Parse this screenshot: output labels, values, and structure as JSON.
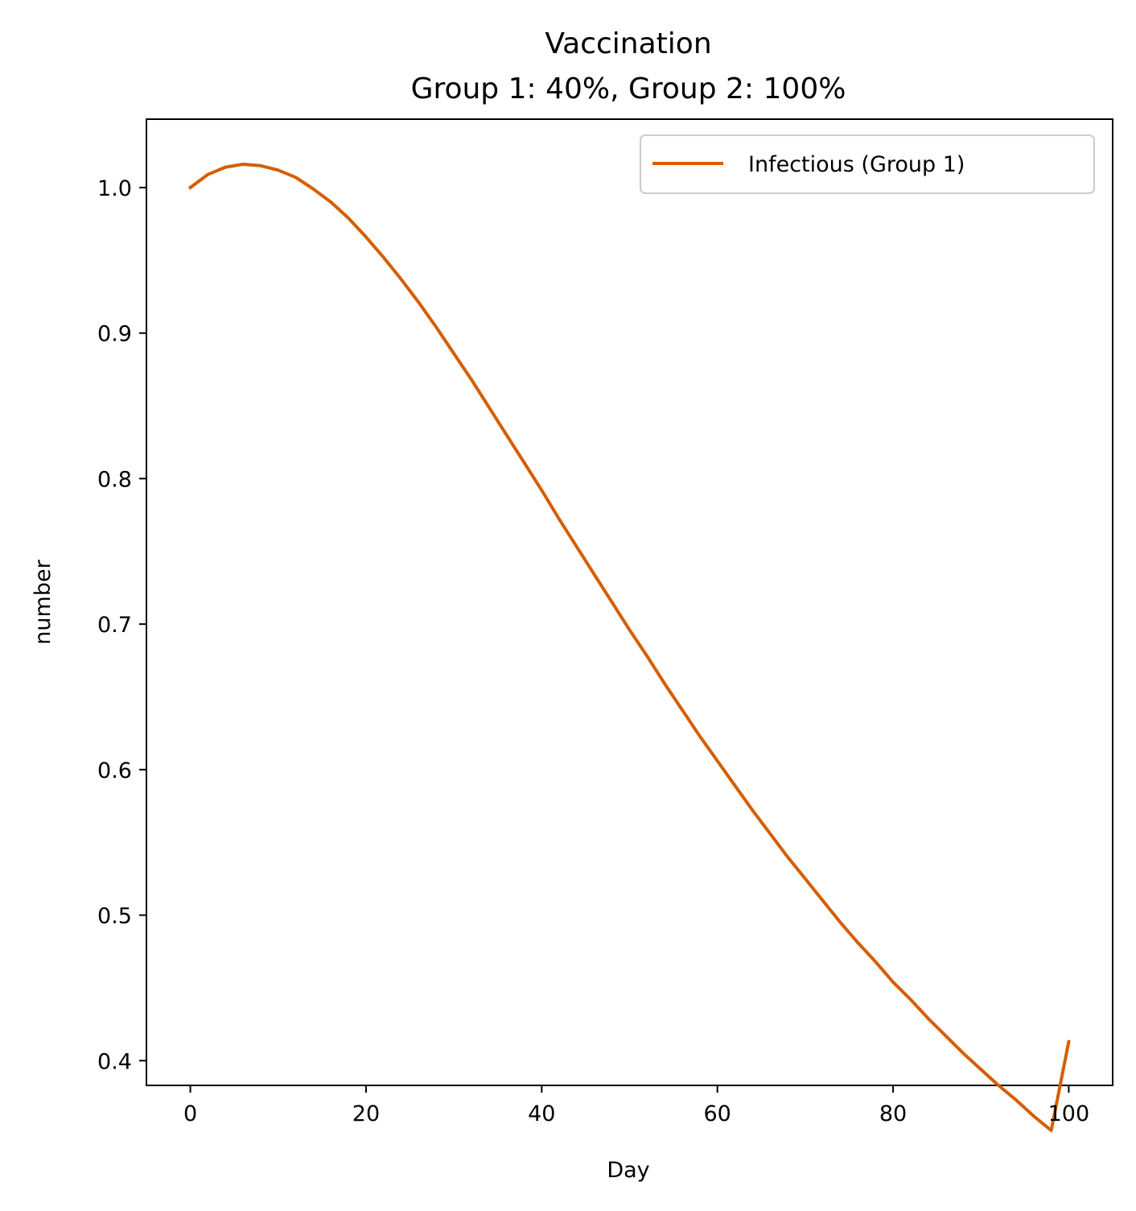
{
  "chart_data": {
    "type": "line",
    "title": "Vaccination",
    "subtitle": "Group 1: 40%, Group 2: 100%",
    "xlabel": "Day",
    "ylabel": "number",
    "xlim": [
      -5,
      105
    ],
    "ylim": [
      0.383,
      1.047
    ],
    "xticks": [
      0,
      20,
      40,
      60,
      80,
      100
    ],
    "yticks": [
      0.4,
      0.5,
      0.6,
      0.7,
      0.8,
      0.9,
      1.0
    ],
    "xtick_labels": [
      "0",
      "20",
      "40",
      "60",
      "80",
      "100"
    ],
    "ytick_labels": [
      "0.4",
      "0.5",
      "0.6",
      "0.7",
      "0.8",
      "0.9",
      "1.0"
    ],
    "grid": false,
    "legend_position": "top-right",
    "series": [
      {
        "name": "Infectious (Group 1)",
        "color": "#d55e00",
        "x": [
          0,
          2,
          4,
          6,
          8,
          10,
          12,
          14,
          16,
          18,
          20,
          22,
          24,
          26,
          28,
          30,
          32,
          34,
          36,
          38,
          40,
          42,
          44,
          46,
          48,
          50,
          52,
          54,
          56,
          58,
          60,
          62,
          64,
          66,
          68,
          70,
          72,
          74,
          76,
          78,
          80,
          82,
          84,
          86,
          88,
          90,
          92,
          94,
          96,
          98,
          100
        ],
        "y": [
          1.0,
          1.009,
          1.014,
          1.016,
          1.015,
          1.012,
          1.007,
          0.999,
          0.99,
          0.979,
          0.966,
          0.952,
          0.937,
          0.921,
          0.904,
          0.886,
          0.868,
          0.849,
          0.83,
          0.811,
          0.792,
          0.772,
          0.753,
          0.734,
          0.715,
          0.696,
          0.678,
          0.659,
          0.641,
          0.623,
          0.606,
          0.589,
          0.572,
          0.556,
          0.54,
          0.525,
          0.51,
          0.495,
          0.481,
          0.468,
          0.454,
          0.442,
          0.429,
          0.417,
          0.405,
          0.394,
          0.383,
          0.373,
          0.362,
          0.352,
          0.413
        ]
      }
    ]
  }
}
